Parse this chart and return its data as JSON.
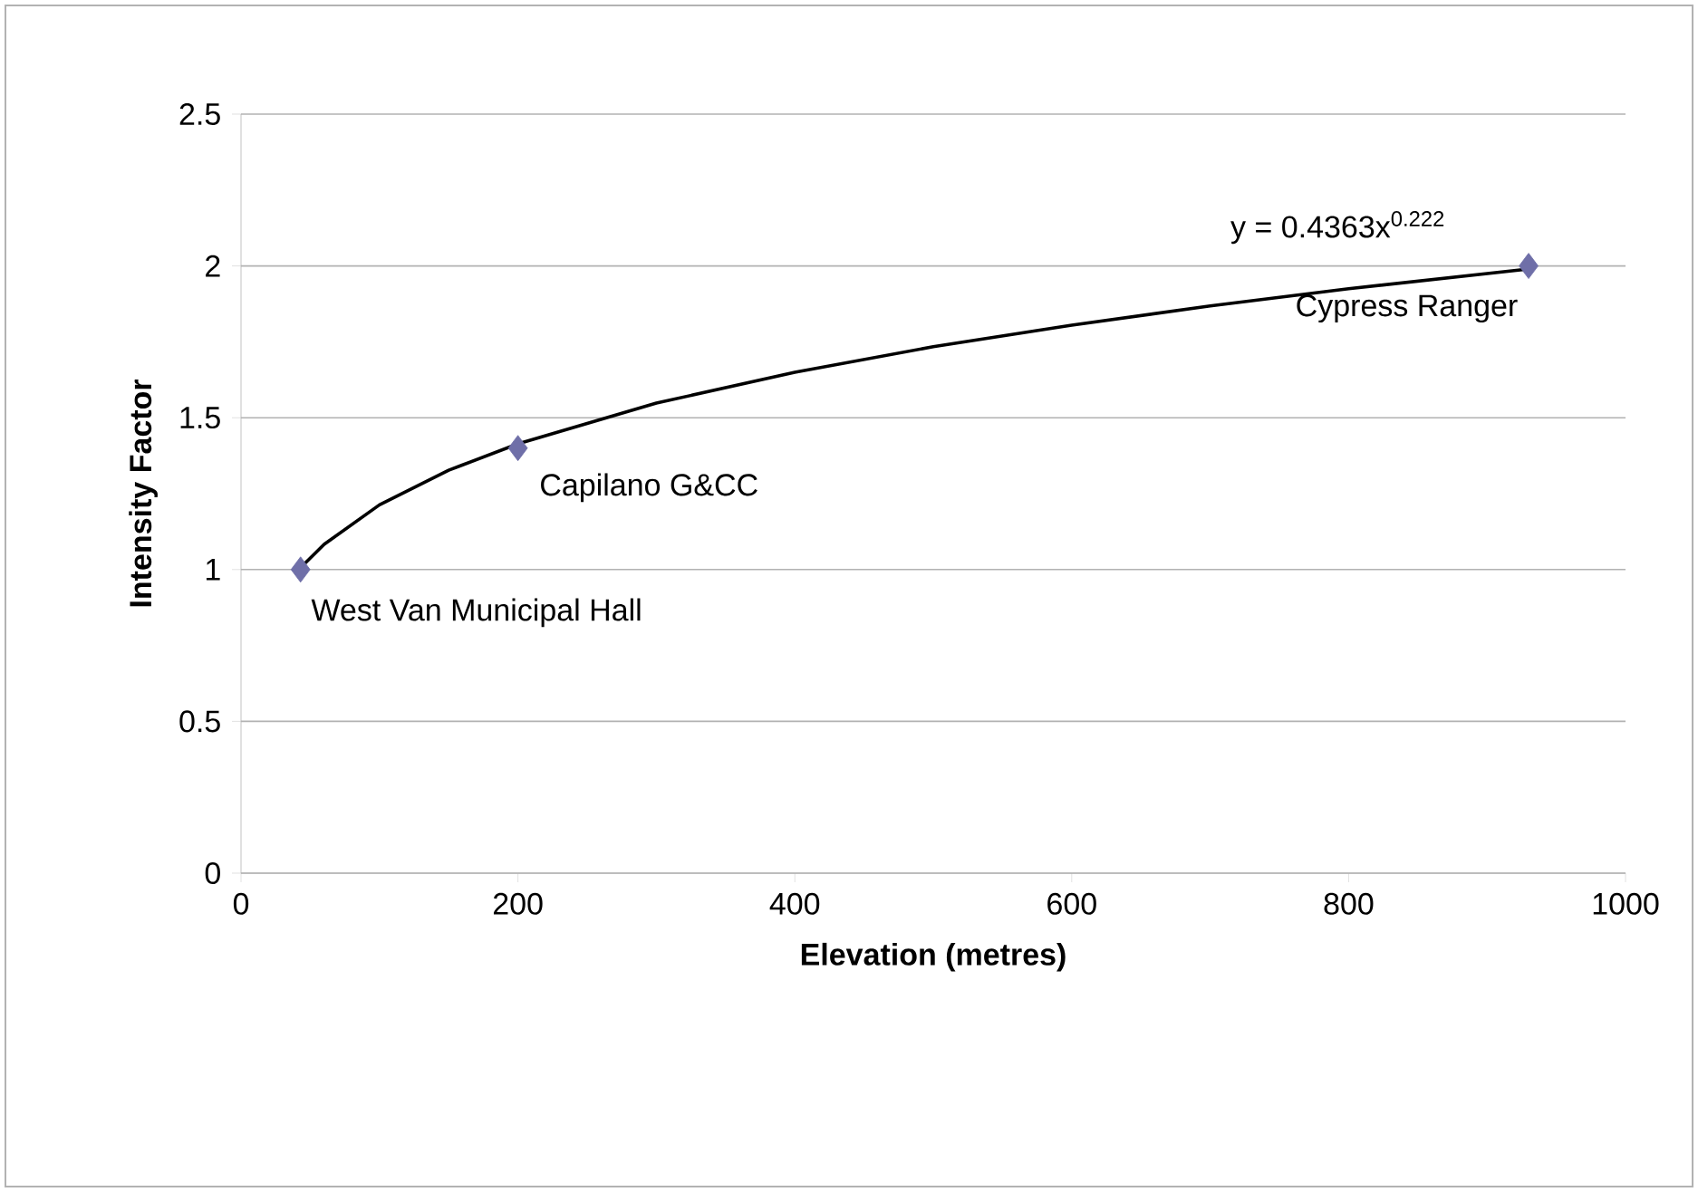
{
  "chart_data": {
    "type": "scatter",
    "xlabel": "Elevation (metres)",
    "ylabel": "Intensity Factor",
    "series": [
      {
        "color": "#6f6fa8",
        "marker": "diamond",
        "x": [
          43,
          200,
          930
        ],
        "values": [
          1,
          1.4,
          2
        ]
      },
      {
        "type": "line",
        "color": "#000000",
        "line_style": "solid",
        "x": [
          43,
          60,
          100,
          150,
          200,
          300,
          400,
          500,
          600,
          700,
          800,
          930
        ],
        "values": [
          1.006,
          1.083,
          1.213,
          1.327,
          1.414,
          1.548,
          1.65,
          1.734,
          1.805,
          1.868,
          1.925,
          1.99
        ]
      }
    ],
    "xlim": [
      0,
      1000
    ],
    "xticks": [
      0,
      200,
      400,
      600,
      800,
      1000
    ],
    "ylim": [
      0,
      2.5
    ],
    "yticks": [
      0,
      0.5,
      1,
      1.5,
      2,
      2.5
    ],
    "grid": "y",
    "annotations": [
      {
        "text": "West Van Municipal Hall",
        "x": 43,
        "y": 1
      },
      {
        "text": "Capilano G&CC",
        "x": 200,
        "y": 1.4
      },
      {
        "text": "Cypress Ranger",
        "x": 930,
        "y": 2
      },
      {
        "text": "y = 0.4363x$^{0.222}$",
        "x": 930,
        "y": 1.99
      }
    ]
  }
}
